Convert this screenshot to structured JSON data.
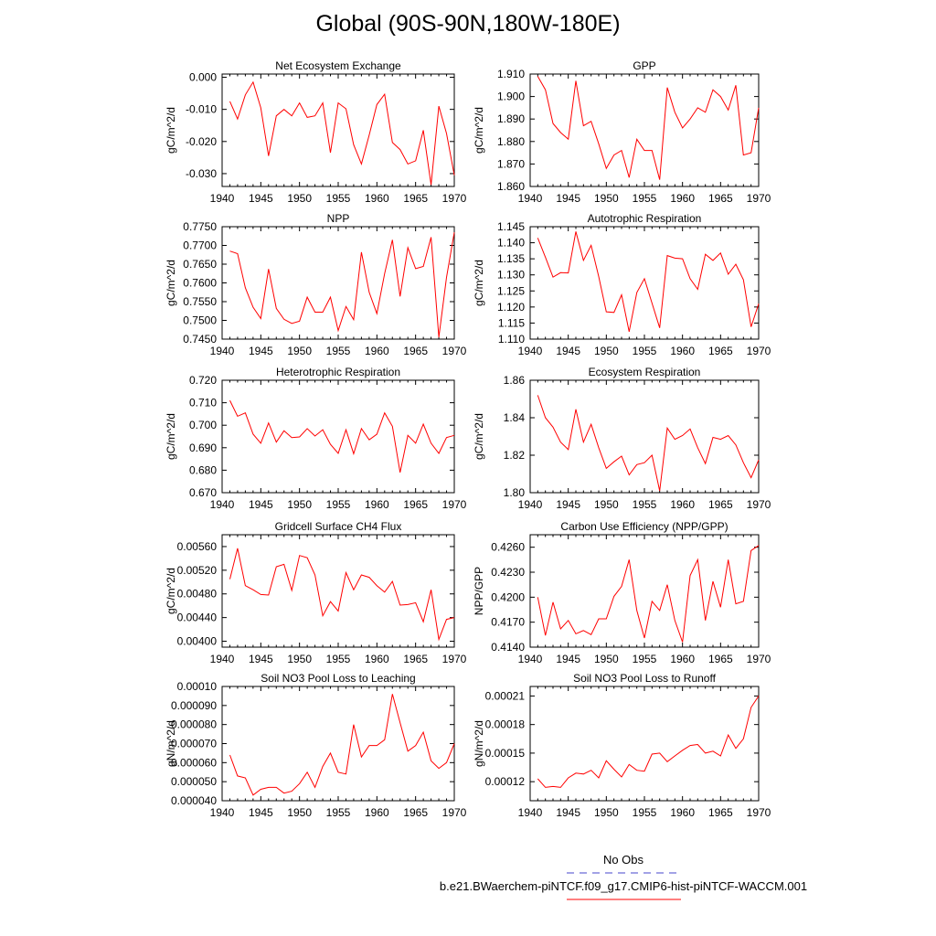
{
  "title": "Global (90S-90N,180W-180E)",
  "legend": {
    "no_obs_label": "No Obs",
    "no_obs_color": "#4444cc",
    "run_label": "b.e21.BWaerchem-piNTCF.f09_g17.CMIP6-hist-piNTCF-WACCM.001",
    "run_color": "#ff0000"
  },
  "chart_data": [
    {
      "type": "line",
      "title": "Net Ecosystem Exchange",
      "ylabel": "gC/m^2/d",
      "xlim": [
        1940,
        1970
      ],
      "ylim": [
        -0.034,
        0.001
      ],
      "yticks": [
        0,
        -0.01,
        -0.02,
        -0.03
      ],
      "ytick_labels": [
        "0.000",
        "-0.010",
        "-0.020",
        "-0.030"
      ],
      "xticks": [
        1940,
        1945,
        1950,
        1955,
        1960,
        1965,
        1970
      ],
      "x": [
        1941,
        1942,
        1943,
        1944,
        1945,
        1946,
        1947,
        1948,
        1949,
        1950,
        1951,
        1952,
        1953,
        1954,
        1955,
        1956,
        1957,
        1958,
        1959,
        1960,
        1961,
        1962,
        1963,
        1964,
        1965,
        1966,
        1967,
        1968,
        1969,
        1970
      ],
      "values": [
        -0.0075,
        -0.013,
        -0.0055,
        -0.0015,
        -0.0095,
        -0.0245,
        -0.012,
        -0.01,
        -0.012,
        -0.008,
        -0.0125,
        -0.012,
        -0.008,
        -0.0235,
        -0.008,
        -0.0098,
        -0.021,
        -0.027,
        -0.018,
        -0.0085,
        -0.0053,
        -0.0203,
        -0.0225,
        -0.027,
        -0.026,
        -0.0165,
        -0.0335,
        -0.009,
        -0.0175,
        -0.0305
      ]
    },
    {
      "type": "line",
      "title": "GPP",
      "ylabel": "gC/m^2/d",
      "xlim": [
        1940,
        1970
      ],
      "ylim": [
        1.86,
        1.91
      ],
      "yticks": [
        1.86,
        1.87,
        1.88,
        1.89,
        1.9,
        1.91
      ],
      "ytick_labels": [
        "1.860",
        "1.870",
        "1.880",
        "1.890",
        "1.900",
        "1.910"
      ],
      "xticks": [
        1940,
        1945,
        1950,
        1955,
        1960,
        1965,
        1970
      ],
      "x": [
        1941,
        1942,
        1943,
        1944,
        1945,
        1946,
        1947,
        1948,
        1949,
        1950,
        1951,
        1952,
        1953,
        1954,
        1955,
        1956,
        1957,
        1958,
        1959,
        1960,
        1961,
        1962,
        1963,
        1964,
        1965,
        1966,
        1967,
        1968,
        1969,
        1970
      ],
      "values": [
        1.909,
        1.903,
        1.888,
        1.884,
        1.881,
        1.907,
        1.887,
        1.889,
        1.879,
        1.868,
        1.874,
        1.876,
        1.864,
        1.881,
        1.876,
        1.876,
        1.863,
        1.904,
        1.893,
        1.886,
        1.89,
        1.895,
        1.893,
        1.903,
        1.9,
        1.894,
        1.905,
        1.874,
        1.875,
        1.895
      ]
    },
    {
      "type": "line",
      "title": "NPP",
      "ylabel": "gC/m^2/d",
      "xlim": [
        1940,
        1970
      ],
      "ylim": [
        0.745,
        0.775
      ],
      "yticks": [
        0.745,
        0.75,
        0.755,
        0.76,
        0.765,
        0.77,
        0.775
      ],
      "ytick_labels": [
        "0.7450",
        "0.7500",
        "0.7550",
        "0.7600",
        "0.7650",
        "0.7700",
        "0.7750"
      ],
      "xticks": [
        1940,
        1945,
        1950,
        1955,
        1960,
        1965,
        1970
      ],
      "x": [
        1941,
        1942,
        1943,
        1944,
        1945,
        1946,
        1947,
        1948,
        1949,
        1950,
        1951,
        1952,
        1953,
        1954,
        1955,
        1956,
        1957,
        1958,
        1959,
        1960,
        1961,
        1962,
        1963,
        1964,
        1965,
        1966,
        1967,
        1968,
        1969,
        1970
      ],
      "values": [
        0.7685,
        0.7678,
        0.7587,
        0.7535,
        0.7505,
        0.7637,
        0.7532,
        0.7503,
        0.7492,
        0.7498,
        0.7562,
        0.7522,
        0.7522,
        0.7562,
        0.7473,
        0.7537,
        0.7502,
        0.7682,
        0.7575,
        0.7518,
        0.7625,
        0.7715,
        0.7564,
        0.7694,
        0.7638,
        0.7644,
        0.7722,
        0.7455,
        0.7615,
        0.7735
      ]
    },
    {
      "type": "line",
      "title": "Autotrophic Respiration",
      "ylabel": "gC/m^2/d",
      "xlim": [
        1940,
        1970
      ],
      "ylim": [
        1.11,
        1.145
      ],
      "yticks": [
        1.11,
        1.115,
        1.12,
        1.125,
        1.13,
        1.135,
        1.14,
        1.145
      ],
      "ytick_labels": [
        "1.110",
        "1.115",
        "1.120",
        "1.125",
        "1.130",
        "1.135",
        "1.140",
        "1.145"
      ],
      "xticks": [
        1940,
        1945,
        1950,
        1955,
        1960,
        1965,
        1970
      ],
      "x": [
        1941,
        1942,
        1943,
        1944,
        1945,
        1946,
        1947,
        1948,
        1949,
        1950,
        1951,
        1952,
        1953,
        1954,
        1955,
        1956,
        1957,
        1958,
        1959,
        1960,
        1961,
        1962,
        1963,
        1964,
        1965,
        1966,
        1967,
        1968,
        1969,
        1970
      ],
      "values": [
        1.1415,
        1.1355,
        1.1293,
        1.1307,
        1.1306,
        1.1435,
        1.1345,
        1.1392,
        1.1295,
        1.1185,
        1.1183,
        1.1238,
        1.1123,
        1.1245,
        1.1288,
        1.1212,
        1.1135,
        1.136,
        1.1352,
        1.135,
        1.1288,
        1.1255,
        1.1364,
        1.1345,
        1.1368,
        1.1302,
        1.1333,
        1.1285,
        1.1138,
        1.121
      ]
    },
    {
      "type": "line",
      "title": "Heterotrophic Respiration",
      "ylabel": "gC/m^2/d",
      "xlim": [
        1940,
        1970
      ],
      "ylim": [
        0.67,
        0.72
      ],
      "yticks": [
        0.67,
        0.68,
        0.69,
        0.7,
        0.71,
        0.72
      ],
      "ytick_labels": [
        "0.670",
        "0.680",
        "0.690",
        "0.700",
        "0.710",
        "0.720"
      ],
      "xticks": [
        1940,
        1945,
        1950,
        1955,
        1960,
        1965,
        1970
      ],
      "x": [
        1941,
        1942,
        1943,
        1944,
        1945,
        1946,
        1947,
        1948,
        1949,
        1950,
        1951,
        1952,
        1953,
        1954,
        1955,
        1956,
        1957,
        1958,
        1959,
        1960,
        1961,
        1962,
        1963,
        1964,
        1965,
        1966,
        1967,
        1968,
        1969,
        1970
      ],
      "values": [
        0.711,
        0.704,
        0.7055,
        0.696,
        0.692,
        0.701,
        0.6925,
        0.6975,
        0.6945,
        0.6948,
        0.6985,
        0.6952,
        0.698,
        0.6915,
        0.6875,
        0.698,
        0.6873,
        0.6985,
        0.6935,
        0.696,
        0.7055,
        0.6995,
        0.679,
        0.6955,
        0.692,
        0.7005,
        0.692,
        0.6875,
        0.6945,
        0.6955
      ]
    },
    {
      "type": "line",
      "title": "Ecosystem Respiration",
      "ylabel": "gC/m^2/d",
      "xlim": [
        1940,
        1970
      ],
      "ylim": [
        1.8,
        1.86
      ],
      "yticks": [
        1.8,
        1.82,
        1.84,
        1.86
      ],
      "ytick_labels": [
        "1.80",
        "1.82",
        "1.84",
        "1.86"
      ],
      "xticks": [
        1940,
        1945,
        1950,
        1955,
        1960,
        1965,
        1970
      ],
      "x": [
        1941,
        1942,
        1943,
        1944,
        1945,
        1946,
        1947,
        1948,
        1949,
        1950,
        1951,
        1952,
        1953,
        1954,
        1955,
        1956,
        1957,
        1958,
        1959,
        1960,
        1961,
        1962,
        1963,
        1964,
        1965,
        1966,
        1967,
        1968,
        1969,
        1970
      ],
      "values": [
        1.852,
        1.84,
        1.835,
        1.827,
        1.823,
        1.8445,
        1.827,
        1.8365,
        1.824,
        1.813,
        1.8165,
        1.8195,
        1.8095,
        1.815,
        1.816,
        1.82,
        1.801,
        1.8345,
        1.8285,
        1.8305,
        1.834,
        1.824,
        1.8155,
        1.8295,
        1.8285,
        1.8305,
        1.8255,
        1.816,
        1.808,
        1.8175
      ]
    },
    {
      "type": "line",
      "title": "Gridcell Surface CH4 Flux",
      "ylabel": "gC/m^2/d",
      "xlim": [
        1940,
        1970
      ],
      "ylim": [
        0.0039,
        0.0058
      ],
      "yticks": [
        0.004,
        0.0044,
        0.0048,
        0.0052,
        0.0056
      ],
      "ytick_labels": [
        "0.00400",
        "0.00440",
        "0.00480",
        "0.00520",
        "0.00560"
      ],
      "xticks": [
        1940,
        1945,
        1950,
        1955,
        1960,
        1965,
        1970
      ],
      "x": [
        1941,
        1942,
        1943,
        1944,
        1945,
        1946,
        1947,
        1948,
        1949,
        1950,
        1951,
        1952,
        1953,
        1954,
        1955,
        1956,
        1957,
        1958,
        1959,
        1960,
        1961,
        1962,
        1963,
        1964,
        1965,
        1966,
        1967,
        1968,
        1969,
        1970
      ],
      "values": [
        0.00505,
        0.00557,
        0.00494,
        0.00487,
        0.00479,
        0.00478,
        0.00526,
        0.0053,
        0.00486,
        0.00545,
        0.00541,
        0.00512,
        0.00443,
        0.00467,
        0.00451,
        0.00516,
        0.00487,
        0.00512,
        0.00508,
        0.00494,
        0.00483,
        0.00501,
        0.00461,
        0.00462,
        0.00465,
        0.00433,
        0.00487,
        0.00403,
        0.00437,
        0.0044
      ]
    },
    {
      "type": "line",
      "title": "Carbon Use Efficiency (NPP/GPP)",
      "ylabel": "NPP/GPP",
      "xlim": [
        1940,
        1970
      ],
      "ylim": [
        0.414,
        0.4275
      ],
      "yticks": [
        0.414,
        0.417,
        0.42,
        0.423,
        0.426
      ],
      "ytick_labels": [
        "0.4140",
        "0.4170",
        "0.4200",
        "0.4230",
        "0.4260"
      ],
      "xticks": [
        1940,
        1945,
        1950,
        1955,
        1960,
        1965,
        1970
      ],
      "x": [
        1941,
        1942,
        1943,
        1944,
        1945,
        1946,
        1947,
        1948,
        1949,
        1950,
        1951,
        1952,
        1953,
        1954,
        1955,
        1956,
        1957,
        1958,
        1959,
        1960,
        1961,
        1962,
        1963,
        1964,
        1965,
        1966,
        1967,
        1968,
        1969,
        1970
      ],
      "values": [
        0.42,
        0.4154,
        0.4194,
        0.4162,
        0.4172,
        0.4156,
        0.416,
        0.4155,
        0.4174,
        0.4174,
        0.4201,
        0.4213,
        0.4245,
        0.4184,
        0.4151,
        0.4195,
        0.4184,
        0.4215,
        0.4172,
        0.4146,
        0.4226,
        0.4245,
        0.4172,
        0.4219,
        0.4188,
        0.4245,
        0.4192,
        0.4195,
        0.4256,
        0.4262
      ]
    },
    {
      "type": "line",
      "title": "Soil NO3 Pool Loss to Leaching",
      "ylabel": "gN/m^2/d",
      "xlim": [
        1940,
        1970
      ],
      "ylim": [
        4e-05,
        0.0001
      ],
      "yticks": [
        4e-05,
        5e-05,
        6e-05,
        7e-05,
        8e-05,
        9e-05,
        0.0001
      ],
      "ytick_labels": [
        "0.000040",
        "0.000050",
        "0.000060",
        "0.000070",
        "0.000080",
        "0.000090",
        "0.00010"
      ],
      "xticks": [
        1940,
        1945,
        1950,
        1955,
        1960,
        1965,
        1970
      ],
      "x": [
        1941,
        1942,
        1943,
        1944,
        1945,
        1946,
        1947,
        1948,
        1949,
        1950,
        1951,
        1952,
        1953,
        1954,
        1955,
        1956,
        1957,
        1958,
        1959,
        1960,
        1961,
        1962,
        1963,
        1964,
        1965,
        1966,
        1967,
        1968,
        1969,
        1970
      ],
      "values": [
        6.4e-05,
        5.3e-05,
        5.2e-05,
        4.3e-05,
        4.6e-05,
        4.7e-05,
        4.7e-05,
        4.4e-05,
        4.5e-05,
        4.9e-05,
        5.5e-05,
        4.7e-05,
        5.8e-05,
        6.5e-05,
        5.5e-05,
        5.4e-05,
        8e-05,
        6.3e-05,
        6.9e-05,
        6.9e-05,
        7.2e-05,
        9.6e-05,
        8.1e-05,
        6.6e-05,
        6.9e-05,
        7.6e-05,
        6.1e-05,
        5.7e-05,
        6e-05,
        7e-05
      ]
    },
    {
      "type": "line",
      "title": "Soil NO3 Pool Loss to Runoff",
      "ylabel": "gN/m^2/d",
      "xlim": [
        1940,
        1970
      ],
      "ylim": [
        0.0001,
        0.00022
      ],
      "yticks": [
        0.00012,
        0.00015,
        0.00018,
        0.00021
      ],
      "ytick_labels": [
        "0.00012",
        "0.00015",
        "0.00018",
        "0.00021"
      ],
      "xticks": [
        1940,
        1945,
        1950,
        1955,
        1960,
        1965,
        1970
      ],
      "x": [
        1941,
        1942,
        1943,
        1944,
        1945,
        1946,
        1947,
        1948,
        1949,
        1950,
        1951,
        1952,
        1953,
        1954,
        1955,
        1956,
        1957,
        1958,
        1959,
        1960,
        1961,
        1962,
        1963,
        1964,
        1965,
        1966,
        1967,
        1968,
        1969,
        1970
      ],
      "values": [
        0.000123,
        0.000114,
        0.000115,
        0.000114,
        0.000124,
        0.000129,
        0.000128,
        0.000132,
        0.000124,
        0.000142,
        0.000133,
        0.000125,
        0.000138,
        0.000132,
        0.000131,
        0.000149,
        0.00015,
        0.000141,
        0.000147,
        0.000153,
        0.000158,
        0.000159,
        0.00015,
        0.000152,
        0.000147,
        0.000169,
        0.000155,
        0.000165,
        0.000198,
        0.00021
      ]
    }
  ]
}
